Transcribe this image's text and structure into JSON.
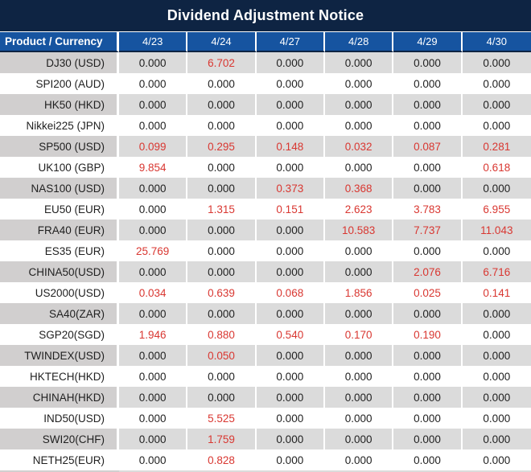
{
  "title": "Dividend Adjustment Notice",
  "colors": {
    "title_bg": "#0E2443",
    "header_bg": "#1654A0",
    "row_gray": "#DBDBDB",
    "product_gray": "#D1CFCF",
    "red_value": "#D93731",
    "black_value": "#1F1F1F"
  },
  "table": {
    "columns": [
      "Product / Currency",
      "4/23",
      "4/24",
      "4/27",
      "4/28",
      "4/29",
      "4/30"
    ],
    "rows": [
      {
        "product": "DJ30 (USD)",
        "values": [
          "0.000",
          "6.702",
          "0.000",
          "0.000",
          "0.000",
          "0.000"
        ],
        "red": [
          false,
          true,
          false,
          false,
          false,
          false
        ]
      },
      {
        "product": "SPI200 (AUD)",
        "values": [
          "0.000",
          "0.000",
          "0.000",
          "0.000",
          "0.000",
          "0.000"
        ],
        "red": [
          false,
          false,
          false,
          false,
          false,
          false
        ]
      },
      {
        "product": "HK50 (HKD)",
        "values": [
          "0.000",
          "0.000",
          "0.000",
          "0.000",
          "0.000",
          "0.000"
        ],
        "red": [
          false,
          false,
          false,
          false,
          false,
          false
        ]
      },
      {
        "product": "Nikkei225 (JPN)",
        "values": [
          "0.000",
          "0.000",
          "0.000",
          "0.000",
          "0.000",
          "0.000"
        ],
        "red": [
          false,
          false,
          false,
          false,
          false,
          false
        ]
      },
      {
        "product": "SP500 (USD)",
        "values": [
          "0.099",
          "0.295",
          "0.148",
          "0.032",
          "0.087",
          "0.281"
        ],
        "red": [
          true,
          true,
          true,
          true,
          true,
          true
        ]
      },
      {
        "product": "UK100 (GBP)",
        "values": [
          "9.854",
          "0.000",
          "0.000",
          "0.000",
          "0.000",
          "0.618"
        ],
        "red": [
          true,
          false,
          false,
          false,
          false,
          true
        ]
      },
      {
        "product": "NAS100 (USD)",
        "values": [
          "0.000",
          "0.000",
          "0.373",
          "0.368",
          "0.000",
          "0.000"
        ],
        "red": [
          false,
          false,
          true,
          true,
          false,
          false
        ]
      },
      {
        "product": "EU50 (EUR)",
        "values": [
          "0.000",
          "1.315",
          "0.151",
          "2.623",
          "3.783",
          "6.955"
        ],
        "red": [
          false,
          true,
          true,
          true,
          true,
          true
        ]
      },
      {
        "product": "FRA40 (EUR)",
        "values": [
          "0.000",
          "0.000",
          "0.000",
          "10.583",
          "7.737",
          "11.043"
        ],
        "red": [
          false,
          false,
          false,
          true,
          true,
          true
        ]
      },
      {
        "product": "ES35 (EUR)",
        "values": [
          "25.769",
          "0.000",
          "0.000",
          "0.000",
          "0.000",
          "0.000"
        ],
        "red": [
          true,
          false,
          false,
          false,
          false,
          false
        ]
      },
      {
        "product": "CHINA50(USD)",
        "values": [
          "0.000",
          "0.000",
          "0.000",
          "0.000",
          "2.076",
          "6.716"
        ],
        "red": [
          false,
          false,
          false,
          false,
          true,
          true
        ]
      },
      {
        "product": "US2000(USD)",
        "values": [
          "0.034",
          "0.639",
          "0.068",
          "1.856",
          "0.025",
          "0.141"
        ],
        "red": [
          true,
          true,
          true,
          true,
          true,
          true
        ]
      },
      {
        "product": "SA40(ZAR)",
        "values": [
          "0.000",
          "0.000",
          "0.000",
          "0.000",
          "0.000",
          "0.000"
        ],
        "red": [
          false,
          false,
          false,
          false,
          false,
          false
        ]
      },
      {
        "product": "SGP20(SGD)",
        "values": [
          "1.946",
          "0.880",
          "0.540",
          "0.170",
          "0.190",
          "0.000"
        ],
        "red": [
          true,
          true,
          true,
          true,
          true,
          false
        ]
      },
      {
        "product": "TWINDEX(USD)",
        "values": [
          "0.000",
          "0.050",
          "0.000",
          "0.000",
          "0.000",
          "0.000"
        ],
        "red": [
          false,
          true,
          false,
          false,
          false,
          false
        ]
      },
      {
        "product": "HKTECH(HKD)",
        "values": [
          "0.000",
          "0.000",
          "0.000",
          "0.000",
          "0.000",
          "0.000"
        ],
        "red": [
          false,
          false,
          false,
          false,
          false,
          false
        ]
      },
      {
        "product": "CHINAH(HKD)",
        "values": [
          "0.000",
          "0.000",
          "0.000",
          "0.000",
          "0.000",
          "0.000"
        ],
        "red": [
          false,
          false,
          false,
          false,
          false,
          false
        ]
      },
      {
        "product": "IND50(USD)",
        "values": [
          "0.000",
          "5.525",
          "0.000",
          "0.000",
          "0.000",
          "0.000"
        ],
        "red": [
          false,
          true,
          false,
          false,
          false,
          false
        ]
      },
      {
        "product": "SWI20(CHF)",
        "values": [
          "0.000",
          "1.759",
          "0.000",
          "0.000",
          "0.000",
          "0.000"
        ],
        "red": [
          false,
          true,
          false,
          false,
          false,
          false
        ]
      },
      {
        "product": "NETH25(EUR)",
        "values": [
          "0.000",
          "0.828",
          "0.000",
          "0.000",
          "0.000",
          "0.000"
        ],
        "red": [
          false,
          true,
          false,
          false,
          false,
          false
        ]
      }
    ]
  }
}
